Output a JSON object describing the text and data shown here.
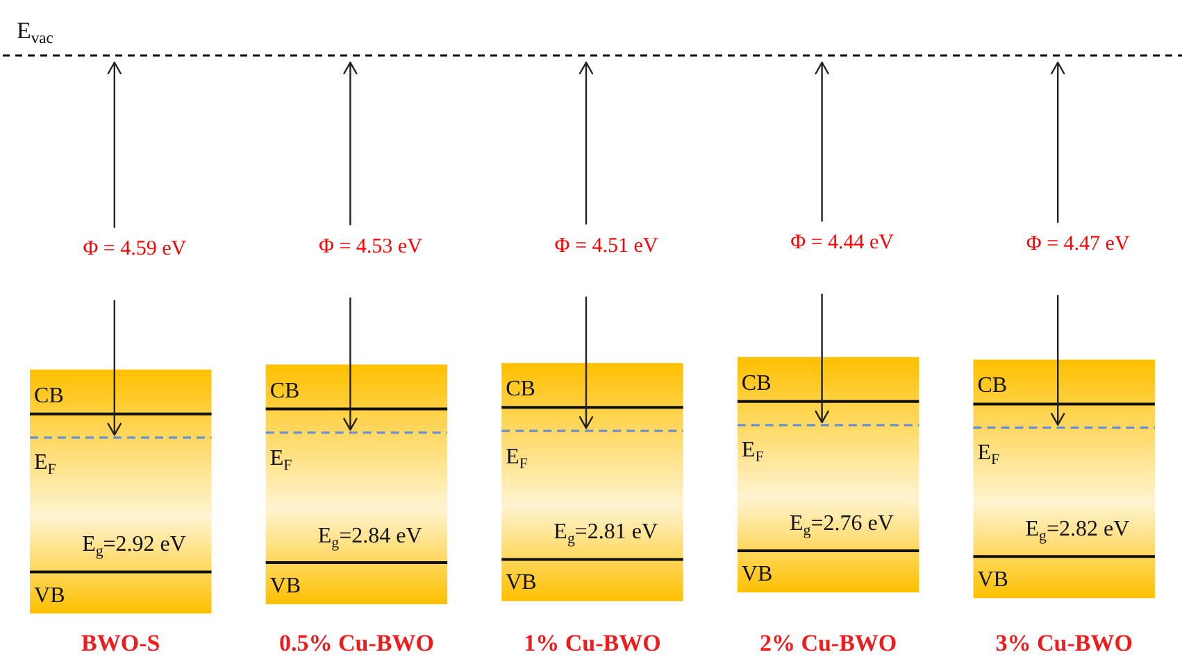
{
  "chart_data": {
    "type": "other",
    "categories": [
      "BWO-S",
      "0.5% Cu-BWO",
      "1% Cu-BWO",
      "2% Cu-BWO",
      "3% Cu-BWO"
    ],
    "series": [
      {
        "color": "#ff0000",
        "values": [
          4.59,
          4.53,
          4.51,
          4.44,
          4.47
        ],
        "value_labels": [
          "Φ = 4.59 eV",
          "Φ = 4.53 eV",
          "Φ = 4.51 eV",
          "Φ = 4.44 eV",
          "Φ = 4.47 eV"
        ]
      },
      {
        "color": "#ffc000",
        "values": [
          2.92,
          2.84,
          2.81,
          2.76,
          2.82
        ],
        "value_labels": [
          "E$_{g}$=2.92 eV",
          "E$_{g}$=2.84 eV",
          "E$_{g}$=2.81 eV",
          "E$_{g}$=2.76 eV",
          "E$_{g}$=2.82 eV"
        ]
      }
    ],
    "annotations": [
      "E$_{vac}$",
      "CB",
      "E$_{F}$",
      "VB"
    ]
  }
}
